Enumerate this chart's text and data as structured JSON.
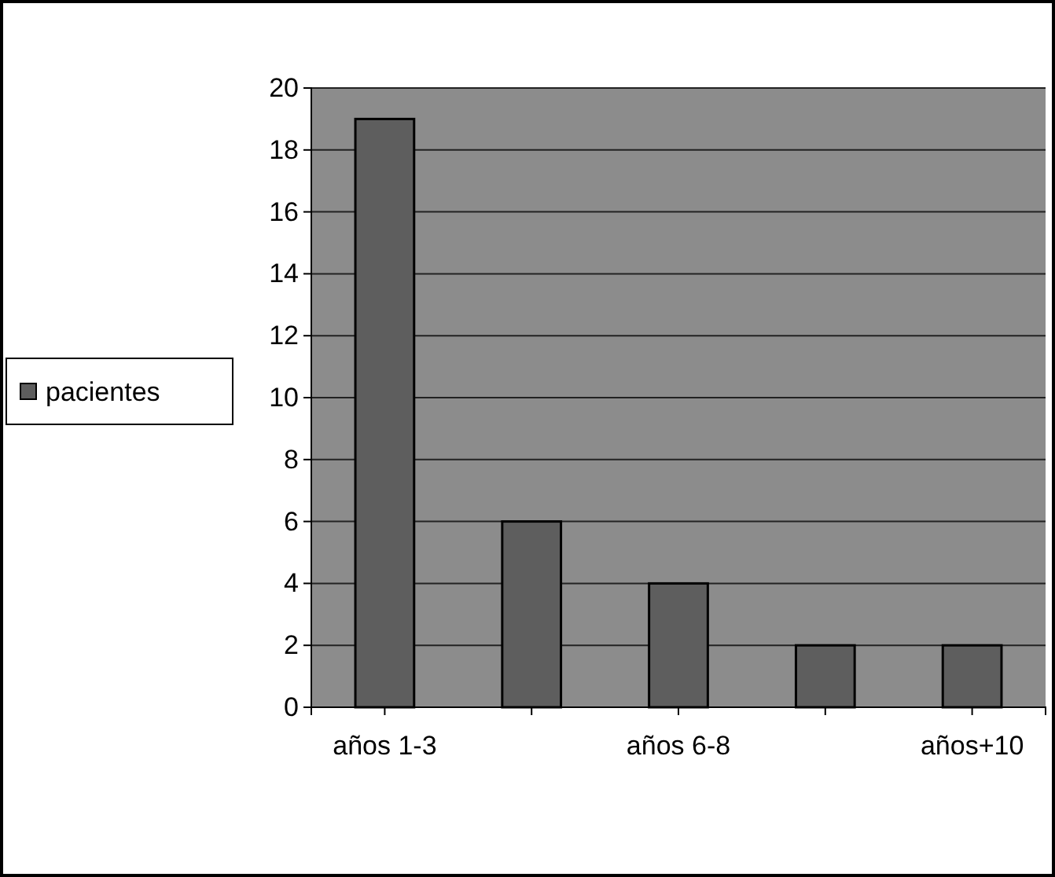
{
  "chart_data": {
    "type": "bar",
    "categories": [
      "años 1-3",
      null,
      "años 6-8",
      null,
      "años+10"
    ],
    "series": [
      {
        "name": "pacientes",
        "color": "#5e5e5e",
        "values": [
          19,
          6,
          4,
          2,
          2
        ]
      }
    ],
    "ylim": [
      0,
      20
    ],
    "yticks": [
      0,
      2,
      4,
      6,
      8,
      10,
      12,
      14,
      16,
      18,
      20
    ],
    "grid": "y",
    "legend": "left"
  }
}
